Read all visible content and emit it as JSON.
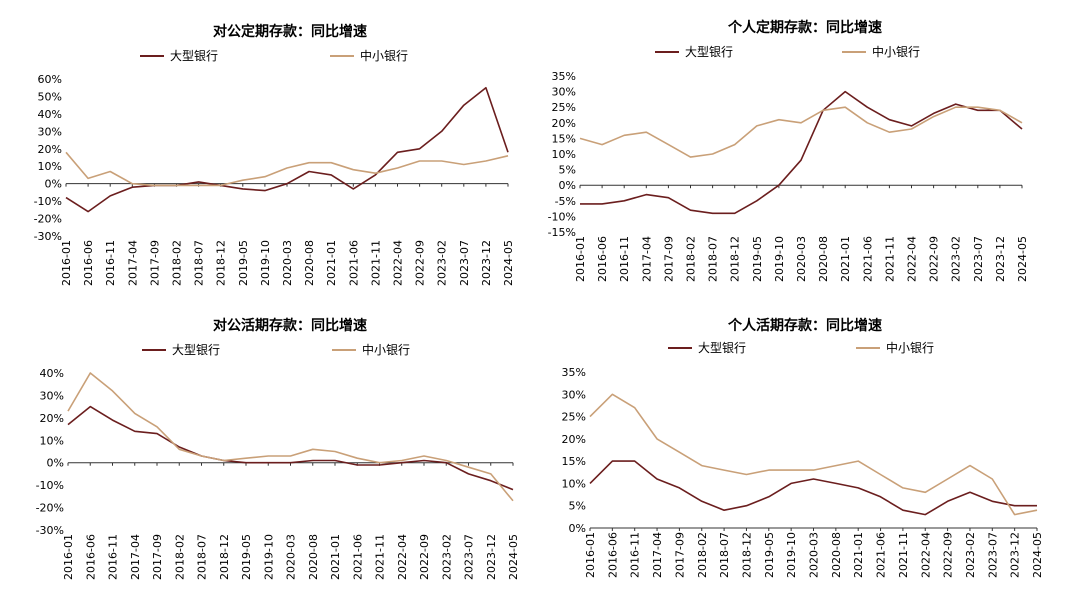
{
  "colors": {
    "large": "#6b1e1e",
    "small": "#c9a078"
  },
  "charts": [
    {
      "title": "对公定期存款：同比增速",
      "legend": [
        "大型银行",
        "中小银行"
      ],
      "yticks": [
        "60%",
        "50%",
        "40%",
        "30%",
        "20%",
        "10%",
        "0%",
        "-10%",
        "-20%",
        "-30%"
      ],
      "xticks": [
        "2016-01",
        "2016-06",
        "2016-11",
        "2017-04",
        "2017-09",
        "2018-02",
        "2018-07",
        "2018-12",
        "2019-05",
        "2019-10",
        "2020-03",
        "2020-08",
        "2021-01",
        "2021-06",
        "2021-11",
        "2022-04",
        "2022-09",
        "2023-02",
        "2023-07",
        "2023-12",
        "2024-05"
      ]
    },
    {
      "title": "个人定期存款：同比增速",
      "legend": [
        "大型银行",
        "中小银行"
      ],
      "yticks": [
        "35%",
        "30%",
        "25%",
        "20%",
        "15%",
        "10%",
        "5%",
        "0%",
        "-5%",
        "-10%",
        "-15%"
      ],
      "xticks": [
        "2016-01",
        "2016-06",
        "2016-11",
        "2017-04",
        "2017-09",
        "2018-02",
        "2018-07",
        "2018-12",
        "2019-05",
        "2019-10",
        "2020-03",
        "2020-08",
        "2021-01",
        "2021-06",
        "2021-11",
        "2022-04",
        "2022-09",
        "2023-02",
        "2023-07",
        "2023-12",
        "2024-05"
      ]
    },
    {
      "title": "对公活期存款：同比增速",
      "legend": [
        "大型银行",
        "中小银行"
      ],
      "yticks": [
        "40%",
        "30%",
        "20%",
        "10%",
        "0%",
        "-10%",
        "-20%",
        "-30%"
      ],
      "xticks": [
        "2016-01",
        "2016-06",
        "2016-11",
        "2017-04",
        "2017-09",
        "2018-02",
        "2018-07",
        "2018-12",
        "2019-05",
        "2019-10",
        "2020-03",
        "2020-08",
        "2021-01",
        "2021-06",
        "2021-11",
        "2022-04",
        "2022-09",
        "2023-02",
        "2023-07",
        "2023-12",
        "2024-05"
      ]
    },
    {
      "title": "个人活期存款：同比增速",
      "legend": [
        "大型银行",
        "中小银行"
      ],
      "yticks": [
        "35%",
        "30%",
        "25%",
        "20%",
        "15%",
        "10%",
        "5%",
        "0%"
      ],
      "xticks": [
        "2016-01",
        "2016-06",
        "2016-11",
        "2017-04",
        "2017-09",
        "2018-02",
        "2018-07",
        "2018-12",
        "2019-05",
        "2019-10",
        "2020-03",
        "2020-08",
        "2021-01",
        "2021-06",
        "2021-11",
        "2022-04",
        "2022-09",
        "2023-02",
        "2023-07",
        "2023-12",
        "2024-05"
      ]
    }
  ],
  "chart_data": [
    {
      "type": "line",
      "title": "对公定期存款：同比增速",
      "ylim": [
        -30,
        60
      ],
      "x": [
        "2016-01",
        "2016-06",
        "2016-11",
        "2017-04",
        "2017-09",
        "2018-02",
        "2018-07",
        "2018-12",
        "2019-05",
        "2019-10",
        "2020-03",
        "2020-08",
        "2021-01",
        "2021-06",
        "2021-11",
        "2022-04",
        "2022-09",
        "2023-02",
        "2023-07",
        "2023-12",
        "2024-05"
      ],
      "series": [
        {
          "name": "大型银行",
          "values": [
            -8,
            -16,
            -7,
            -2,
            -1,
            -1,
            1,
            -1,
            -3,
            -4,
            0,
            7,
            5,
            -3,
            5,
            18,
            20,
            30,
            45,
            55,
            18
          ]
        },
        {
          "name": "中小银行",
          "values": [
            18,
            3,
            7,
            0,
            -1,
            -1,
            -1,
            -1,
            2,
            4,
            9,
            12,
            12,
            8,
            6,
            9,
            13,
            13,
            11,
            13,
            16
          ]
        }
      ]
    },
    {
      "type": "line",
      "title": "个人定期存款：同比增速",
      "ylim": [
        -15,
        35
      ],
      "x": [
        "2016-01",
        "2016-06",
        "2016-11",
        "2017-04",
        "2017-09",
        "2018-02",
        "2018-07",
        "2018-12",
        "2019-05",
        "2019-10",
        "2020-03",
        "2020-08",
        "2021-01",
        "2021-06",
        "2021-11",
        "2022-04",
        "2022-09",
        "2023-02",
        "2023-07",
        "2023-12",
        "2024-05"
      ],
      "series": [
        {
          "name": "大型银行",
          "values": [
            -6,
            -6,
            -5,
            -3,
            -4,
            -8,
            -9,
            -9,
            -5,
            0,
            8,
            24,
            30,
            25,
            21,
            19,
            23,
            26,
            24,
            24,
            18
          ]
        },
        {
          "name": "中小银行",
          "values": [
            15,
            13,
            16,
            17,
            13,
            9,
            10,
            13,
            19,
            21,
            20,
            24,
            25,
            20,
            17,
            18,
            22,
            25,
            25,
            24,
            20
          ]
        }
      ]
    },
    {
      "type": "line",
      "title": "对公活期存款：同比增速",
      "ylim": [
        -30,
        40
      ],
      "x": [
        "2016-01",
        "2016-06",
        "2016-11",
        "2017-04",
        "2017-09",
        "2018-02",
        "2018-07",
        "2018-12",
        "2019-05",
        "2019-10",
        "2020-03",
        "2020-08",
        "2021-01",
        "2021-06",
        "2021-11",
        "2022-04",
        "2022-09",
        "2023-02",
        "2023-07",
        "2023-12",
        "2024-05"
      ],
      "series": [
        {
          "name": "大型银行",
          "values": [
            17,
            25,
            19,
            14,
            13,
            7,
            3,
            1,
            0,
            0,
            0,
            1,
            1,
            -1,
            -1,
            0,
            1,
            0,
            -5,
            -8,
            -12
          ]
        },
        {
          "name": "中小银行",
          "values": [
            23,
            40,
            32,
            22,
            16,
            6,
            3,
            1,
            2,
            3,
            3,
            6,
            5,
            2,
            0,
            1,
            3,
            1,
            -2,
            -5,
            -17
          ]
        }
      ]
    },
    {
      "type": "line",
      "title": "个人活期存款：同比增速",
      "ylim": [
        0,
        35
      ],
      "x": [
        "2016-01",
        "2016-06",
        "2016-11",
        "2017-04",
        "2017-09",
        "2018-02",
        "2018-07",
        "2018-12",
        "2019-05",
        "2019-10",
        "2020-03",
        "2020-08",
        "2021-01",
        "2021-06",
        "2021-11",
        "2022-04",
        "2022-09",
        "2023-02",
        "2023-07",
        "2023-12",
        "2024-05"
      ],
      "series": [
        {
          "name": "大型银行",
          "values": [
            10,
            15,
            15,
            11,
            9,
            6,
            4,
            5,
            7,
            10,
            11,
            10,
            9,
            7,
            4,
            3,
            6,
            8,
            6,
            5,
            5
          ]
        },
        {
          "name": "中小银行",
          "values": [
            25,
            30,
            27,
            20,
            17,
            14,
            13,
            12,
            13,
            13,
            13,
            14,
            15,
            12,
            9,
            8,
            11,
            14,
            11,
            3,
            4
          ]
        }
      ]
    }
  ]
}
